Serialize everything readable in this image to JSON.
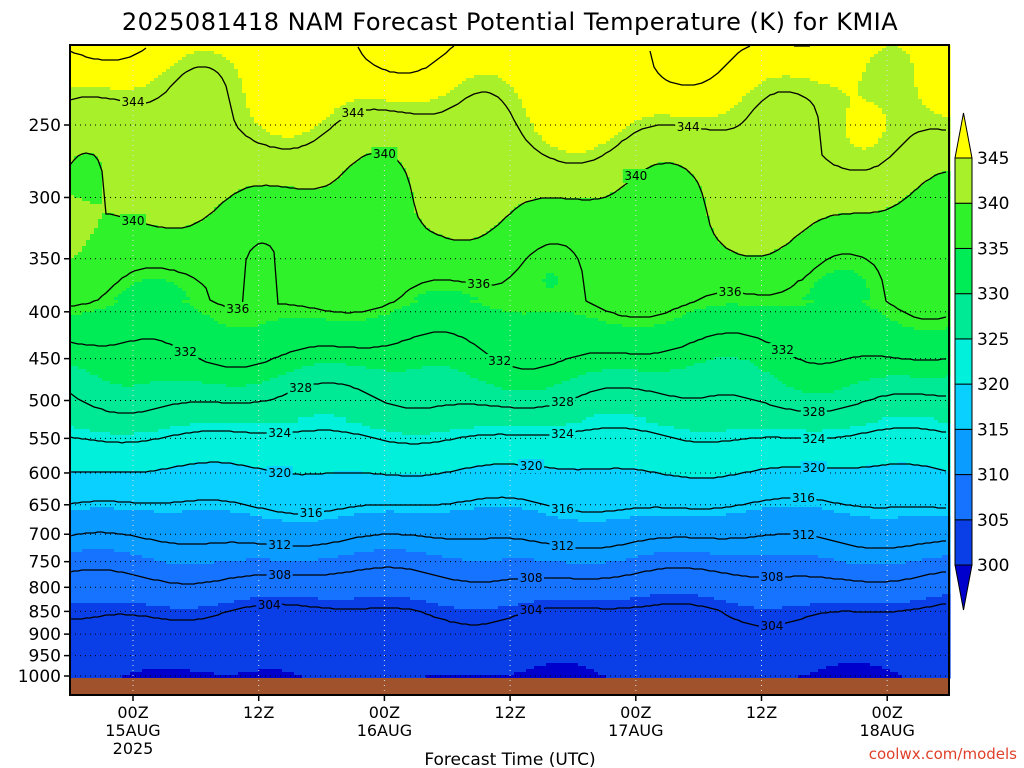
{
  "chart_data": {
    "type": "heatmap",
    "title": "2025081418 NAM Forecast Potential Temperature (K) for KMIA",
    "xlabel": "Forecast Time (UTC)",
    "ylabel": "",
    "y_ticks": [
      250,
      300,
      350,
      400,
      450,
      500,
      550,
      600,
      650,
      700,
      750,
      800,
      850,
      900,
      950,
      1000
    ],
    "y_axis_scale": "log-pressure, inverted",
    "ylim": [
      1015,
      200
    ],
    "x_ticks": [
      {
        "label": "00Z",
        "sub1": "15AUG",
        "sub2": "2025"
      },
      {
        "label": "12Z",
        "sub1": "",
        "sub2": ""
      },
      {
        "label": "00Z",
        "sub1": "16AUG",
        "sub2": ""
      },
      {
        "label": "12Z",
        "sub1": "",
        "sub2": ""
      },
      {
        "label": "00Z",
        "sub1": "17AUG",
        "sub2": ""
      },
      {
        "label": "12Z",
        "sub1": "",
        "sub2": ""
      },
      {
        "label": "00Z",
        "sub1": "18AUG",
        "sub2": ""
      }
    ],
    "colorbar_levels": [
      300,
      305,
      310,
      315,
      320,
      325,
      330,
      335,
      340,
      345
    ],
    "colorbar_colors": [
      "#0000cc",
      "#0a3ee6",
      "#1573ff",
      "#0a9dff",
      "#0ad0ff",
      "#00f0dc",
      "#00ea96",
      "#00ec56",
      "#30f22a",
      "#a8f02a",
      "#ffff00"
    ],
    "contour_interval_K": 4,
    "contour_labels": [
      {
        "value": 344,
        "x_hours": 0
      },
      {
        "value": 344,
        "x_hours": 21
      },
      {
        "value": 344,
        "x_hours": 53
      },
      {
        "value": 340,
        "x_hours": 0
      },
      {
        "value": 340,
        "x_hours": 24
      },
      {
        "value": 340,
        "x_hours": 48
      },
      {
        "value": 336,
        "x_hours": 10
      },
      {
        "value": 336,
        "x_hours": 33
      },
      {
        "value": 336,
        "x_hours": 57
      },
      {
        "value": 332,
        "x_hours": 5
      },
      {
        "value": 332,
        "x_hours": 35
      },
      {
        "value": 332,
        "x_hours": 62
      },
      {
        "value": 328,
        "x_hours": 16
      },
      {
        "value": 328,
        "x_hours": 41
      },
      {
        "value": 328,
        "x_hours": 65
      },
      {
        "value": 324,
        "x_hours": 14
      },
      {
        "value": 324,
        "x_hours": 41
      },
      {
        "value": 324,
        "x_hours": 65
      },
      {
        "value": 320,
        "x_hours": 14
      },
      {
        "value": 320,
        "x_hours": 38
      },
      {
        "value": 320,
        "x_hours": 65
      },
      {
        "value": 316,
        "x_hours": 17
      },
      {
        "value": 316,
        "x_hours": 41
      },
      {
        "value": 316,
        "x_hours": 64
      },
      {
        "value": 312,
        "x_hours": 14
      },
      {
        "value": 312,
        "x_hours": 41
      },
      {
        "value": 312,
        "x_hours": 64
      },
      {
        "value": 308,
        "x_hours": 14
      },
      {
        "value": 308,
        "x_hours": 38
      },
      {
        "value": 308,
        "x_hours": 61
      },
      {
        "value": 304,
        "x_hours": 13
      },
      {
        "value": 304,
        "x_hours": 38
      },
      {
        "value": 304,
        "x_hours": 61
      }
    ],
    "ground_color": "#a0522d",
    "grid": "dotted"
  },
  "watermark": "coolwx.com/models"
}
